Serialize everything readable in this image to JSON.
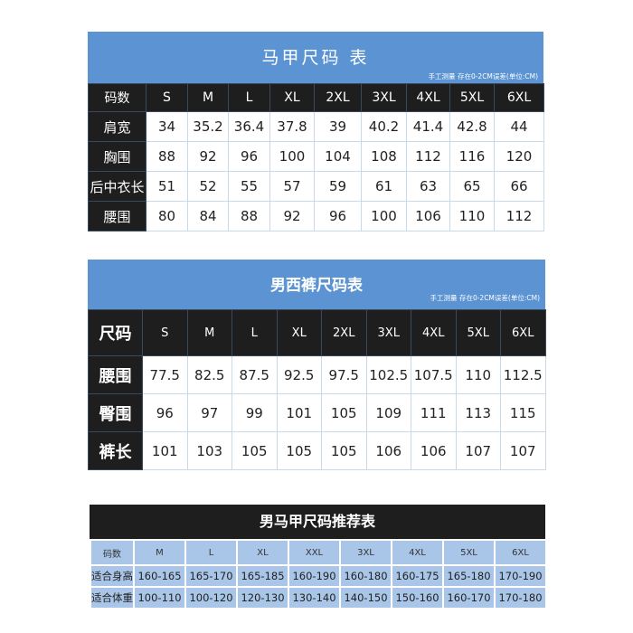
{
  "vest_size_chart": {
    "title": "马甲尺码 表",
    "note": "手工测量 存在0-2CM误差(单位:CM)",
    "header_label": "码数",
    "sizes": [
      "S",
      "M",
      "L",
      "XL",
      "2XL",
      "3XL",
      "4XL",
      "5XL",
      "6XL"
    ],
    "rows": [
      {
        "label": "肩宽",
        "values": [
          "34",
          "35.2",
          "36.4",
          "37.8",
          "39",
          "40.2",
          "41.4",
          "42.8",
          "44"
        ]
      },
      {
        "label": "胸围",
        "values": [
          "88",
          "92",
          "96",
          "100",
          "104",
          "108",
          "112",
          "116",
          "120"
        ]
      },
      {
        "label": "后中衣长",
        "values": [
          "51",
          "52",
          "55",
          "57",
          "59",
          "61",
          "63",
          "65",
          "66"
        ]
      },
      {
        "label": "腰围",
        "values": [
          "80",
          "84",
          "88",
          "92",
          "96",
          "100",
          "106",
          "110",
          "112"
        ]
      }
    ]
  },
  "trousers_size_chart": {
    "title": "男西裤尺码表",
    "note": "手工测量 存在0-2CM误差(单位:CM)",
    "header_label": "尺码",
    "sizes": [
      "S",
      "M",
      "L",
      "XL",
      "2XL",
      "3XL",
      "4XL",
      "5XL",
      "6XL"
    ],
    "rows": [
      {
        "label": "腰围",
        "values": [
          "77.5",
          "82.5",
          "87.5",
          "92.5",
          "97.5",
          "102.5",
          "107.5",
          "110",
          "112.5"
        ]
      },
      {
        "label": "臀围",
        "values": [
          "96",
          "97",
          "99",
          "101",
          "105",
          "109",
          "111",
          "113",
          "115"
        ]
      },
      {
        "label": "裤长",
        "values": [
          "101",
          "103",
          "105",
          "105",
          "105",
          "106",
          "106",
          "107",
          "107"
        ]
      }
    ]
  },
  "vest_recommendation_chart": {
    "title": "男马甲尺码推荐表",
    "header_label": "码数",
    "sizes": [
      "M",
      "L",
      "XL",
      "XXL",
      "3XL",
      "4XL",
      "5XL",
      "6XL"
    ],
    "rows": [
      {
        "label": "适合身高",
        "values": [
          "160-165",
          "165-170",
          "165-185",
          "160-190",
          "160-180",
          "160-175",
          "165-180",
          "170-190"
        ]
      },
      {
        "label": "适合体重",
        "values": [
          "100-110",
          "100-120",
          "120-130",
          "130-140",
          "140-150",
          "150-160",
          "160-170",
          "170-180"
        ]
      }
    ]
  },
  "colors": {
    "banner_blue": "#5b93d3",
    "header_black": "#1e1e1e",
    "light_blue": "#a9c6e8"
  }
}
